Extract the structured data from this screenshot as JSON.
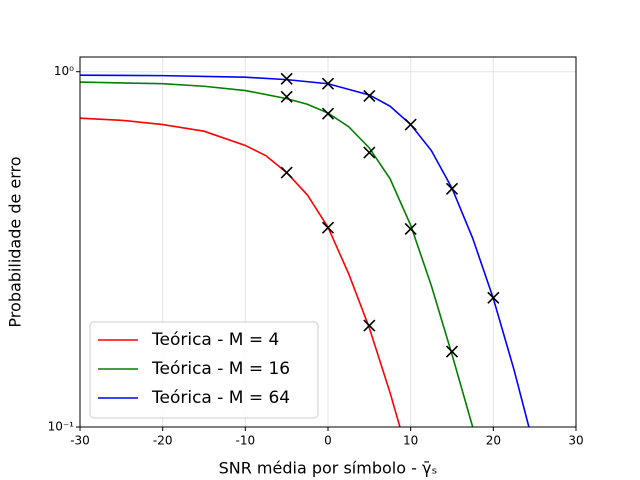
{
  "chart_data": {
    "type": "line",
    "xlabel": "SNR média por símbolo - γ̄ₛ",
    "ylabel": "Probabilidade de erro",
    "xlim": [
      -30,
      30
    ],
    "xticks": [
      -30,
      -20,
      -10,
      0,
      10,
      20,
      30
    ],
    "ylim": [
      0.1,
      1.1
    ],
    "yscale": "log",
    "yticks": [
      {
        "value": 0.1,
        "label": "10⁻¹"
      },
      {
        "value": 1,
        "label": "10⁰"
      }
    ],
    "grid": true,
    "legend": "lower left",
    "series": [
      {
        "name": "Teórica - M = 4",
        "color": "#ff0000",
        "x": [
          -30,
          -25,
          -20,
          -15,
          -10,
          -7.5,
          -5,
          -2.5,
          0,
          2.5,
          5,
          7.5,
          8.7
        ],
        "values": [
          0.74,
          0.73,
          0.71,
          0.68,
          0.62,
          0.58,
          0.52,
          0.45,
          0.365,
          0.27,
          0.19,
          0.125,
          0.1
        ],
        "sim_x": [
          -5,
          0,
          5
        ],
        "sim_values": [
          0.52,
          0.364,
          0.193
        ]
      },
      {
        "name": "Teórica - M = 16",
        "color": "#008000",
        "x": [
          -30,
          -20,
          -15,
          -10,
          -5,
          -2.5,
          0,
          2.5,
          5,
          7.5,
          10,
          12.5,
          15,
          17.5
        ],
        "values": [
          0.935,
          0.925,
          0.91,
          0.885,
          0.84,
          0.81,
          0.765,
          0.7,
          0.61,
          0.5,
          0.37,
          0.25,
          0.16,
          0.1
        ],
        "sim_x": [
          -5,
          0,
          5,
          10,
          15
        ],
        "sim_values": [
          0.85,
          0.762,
          0.592,
          0.361,
          0.163
        ]
      },
      {
        "name": "Teórica - M = 64",
        "color": "#0000ff",
        "x": [
          -30,
          -20,
          -10,
          -5,
          0,
          5,
          7.5,
          10,
          12.5,
          15,
          17.5,
          20,
          22.5,
          24.3
        ],
        "values": [
          0.978,
          0.975,
          0.965,
          0.95,
          0.925,
          0.86,
          0.8,
          0.71,
          0.6,
          0.47,
          0.34,
          0.23,
          0.145,
          0.1
        ],
        "sim_x": [
          -5,
          0,
          5,
          10,
          15,
          20
        ],
        "sim_values": [
          0.955,
          0.925,
          0.855,
          0.71,
          0.468,
          0.231
        ]
      }
    ]
  }
}
